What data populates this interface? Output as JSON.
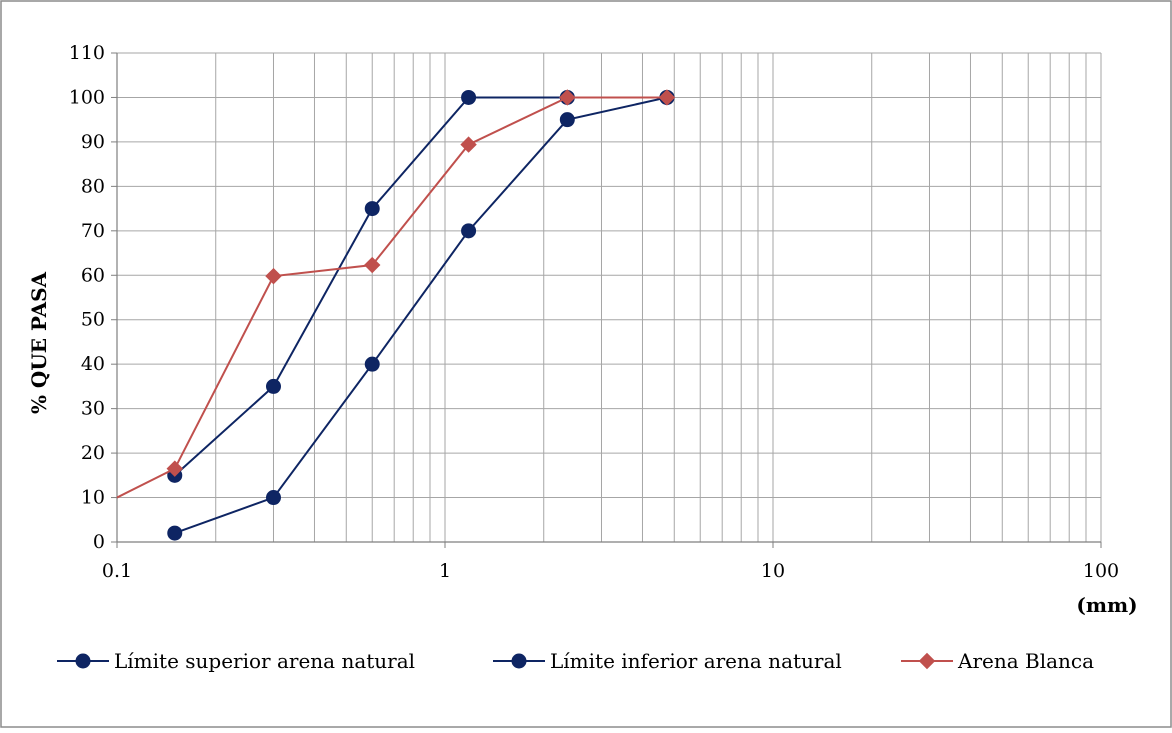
{
  "chart_data": {
    "type": "line",
    "x_scale": "log",
    "xlim": [
      0.1,
      100
    ],
    "ylim": [
      0,
      110
    ],
    "y_ticks": [
      0,
      10,
      20,
      30,
      40,
      50,
      60,
      70,
      80,
      90,
      100,
      110
    ],
    "x_ticks": [
      0.1,
      1,
      10,
      100
    ],
    "x_tick_labels": [
      "0.1",
      "1",
      "10",
      "100"
    ],
    "y_tick_labels": [
      "0",
      "10",
      "20",
      "30",
      "40",
      "50",
      "60",
      "70",
      "80",
      "90",
      "100",
      "110"
    ],
    "ylabel": "% QUE PASA",
    "xlabel": "(mm)",
    "grid": true,
    "legend_position": "bottom",
    "series": [
      {
        "name": "Límite superior arena natural",
        "color": "#0e2563",
        "marker": "circle",
        "x": [
          0.15,
          0.3,
          0.6,
          1.18,
          2.36,
          4.75
        ],
        "y": [
          15,
          35,
          75,
          100,
          100,
          100
        ]
      },
      {
        "name": "Límite inferior arena natural",
        "color": "#0e2563",
        "marker": "circle",
        "x": [
          0.15,
          0.3,
          0.6,
          1.18,
          2.36,
          4.75
        ],
        "y": [
          2,
          10,
          40,
          70,
          95,
          100
        ]
      },
      {
        "name": "Arena Blanca",
        "color": "#c0504d",
        "marker": "diamond",
        "x": [
          0.1,
          0.15,
          0.3,
          0.6,
          1.18,
          2.36,
          4.75
        ],
        "y": [
          10,
          16.5,
          59.8,
          62.3,
          89.4,
          100,
          100
        ],
        "marker_from_index": 1
      }
    ]
  }
}
